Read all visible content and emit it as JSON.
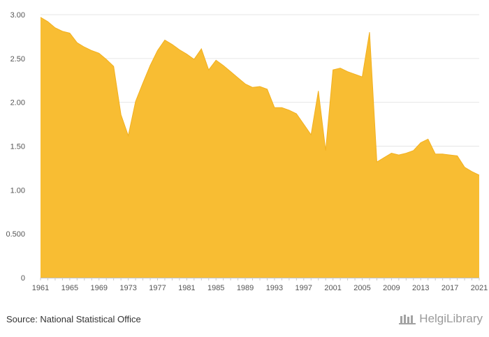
{
  "chart_data": {
    "type": "area",
    "title": "",
    "xlabel": "",
    "ylabel": "",
    "x": [
      1961,
      1962,
      1963,
      1964,
      1965,
      1966,
      1967,
      1968,
      1969,
      1970,
      1971,
      1972,
      1973,
      1974,
      1975,
      1976,
      1977,
      1978,
      1979,
      1980,
      1981,
      1982,
      1983,
      1984,
      1985,
      1986,
      1987,
      1988,
      1989,
      1990,
      1991,
      1992,
      1993,
      1994,
      1995,
      1996,
      1997,
      1998,
      1999,
      2000,
      2001,
      2002,
      2003,
      2004,
      2005,
      2006,
      2007,
      2008,
      2009,
      2010,
      2011,
      2012,
      2013,
      2014,
      2015,
      2016,
      2017,
      2018,
      2019,
      2020,
      2021
    ],
    "values": [
      2.97,
      2.92,
      2.85,
      2.81,
      2.79,
      2.68,
      2.63,
      2.59,
      2.56,
      2.49,
      2.41,
      1.86,
      1.62,
      2.01,
      2.22,
      2.42,
      2.59,
      2.71,
      2.66,
      2.6,
      2.55,
      2.49,
      2.61,
      2.37,
      2.48,
      2.42,
      2.35,
      2.28,
      2.21,
      2.17,
      2.18,
      2.15,
      1.94,
      1.94,
      1.91,
      1.87,
      1.75,
      1.63,
      2.13,
      1.45,
      2.37,
      2.39,
      2.35,
      2.32,
      2.29,
      2.8,
      1.32,
      1.37,
      1.42,
      1.4,
      1.42,
      1.45,
      1.54,
      1.58,
      1.41,
      1.41,
      1.4,
      1.39,
      1.26,
      1.21,
      1.17
    ],
    "ylim": [
      0,
      3.0
    ],
    "yticks": [
      0,
      0.5,
      1.0,
      1.5,
      2.0,
      2.5,
      3.0
    ],
    "ytick_labels": [
      "0",
      "0.500",
      "1.00",
      "1.50",
      "2.00",
      "2.50",
      "3.00"
    ],
    "xtick_labels": [
      "1961",
      "1965",
      "1969",
      "1973",
      "1977",
      "1981",
      "1985",
      "1989",
      "1993",
      "1997",
      "2001",
      "2005",
      "2009",
      "2013",
      "2017",
      "2021"
    ],
    "grid": true,
    "fill_color": "#f8bd33",
    "line_color": "#f2b01f"
  },
  "footer": {
    "source": "Source: National Statistical Office",
    "brand": "HelgiLibrary"
  }
}
